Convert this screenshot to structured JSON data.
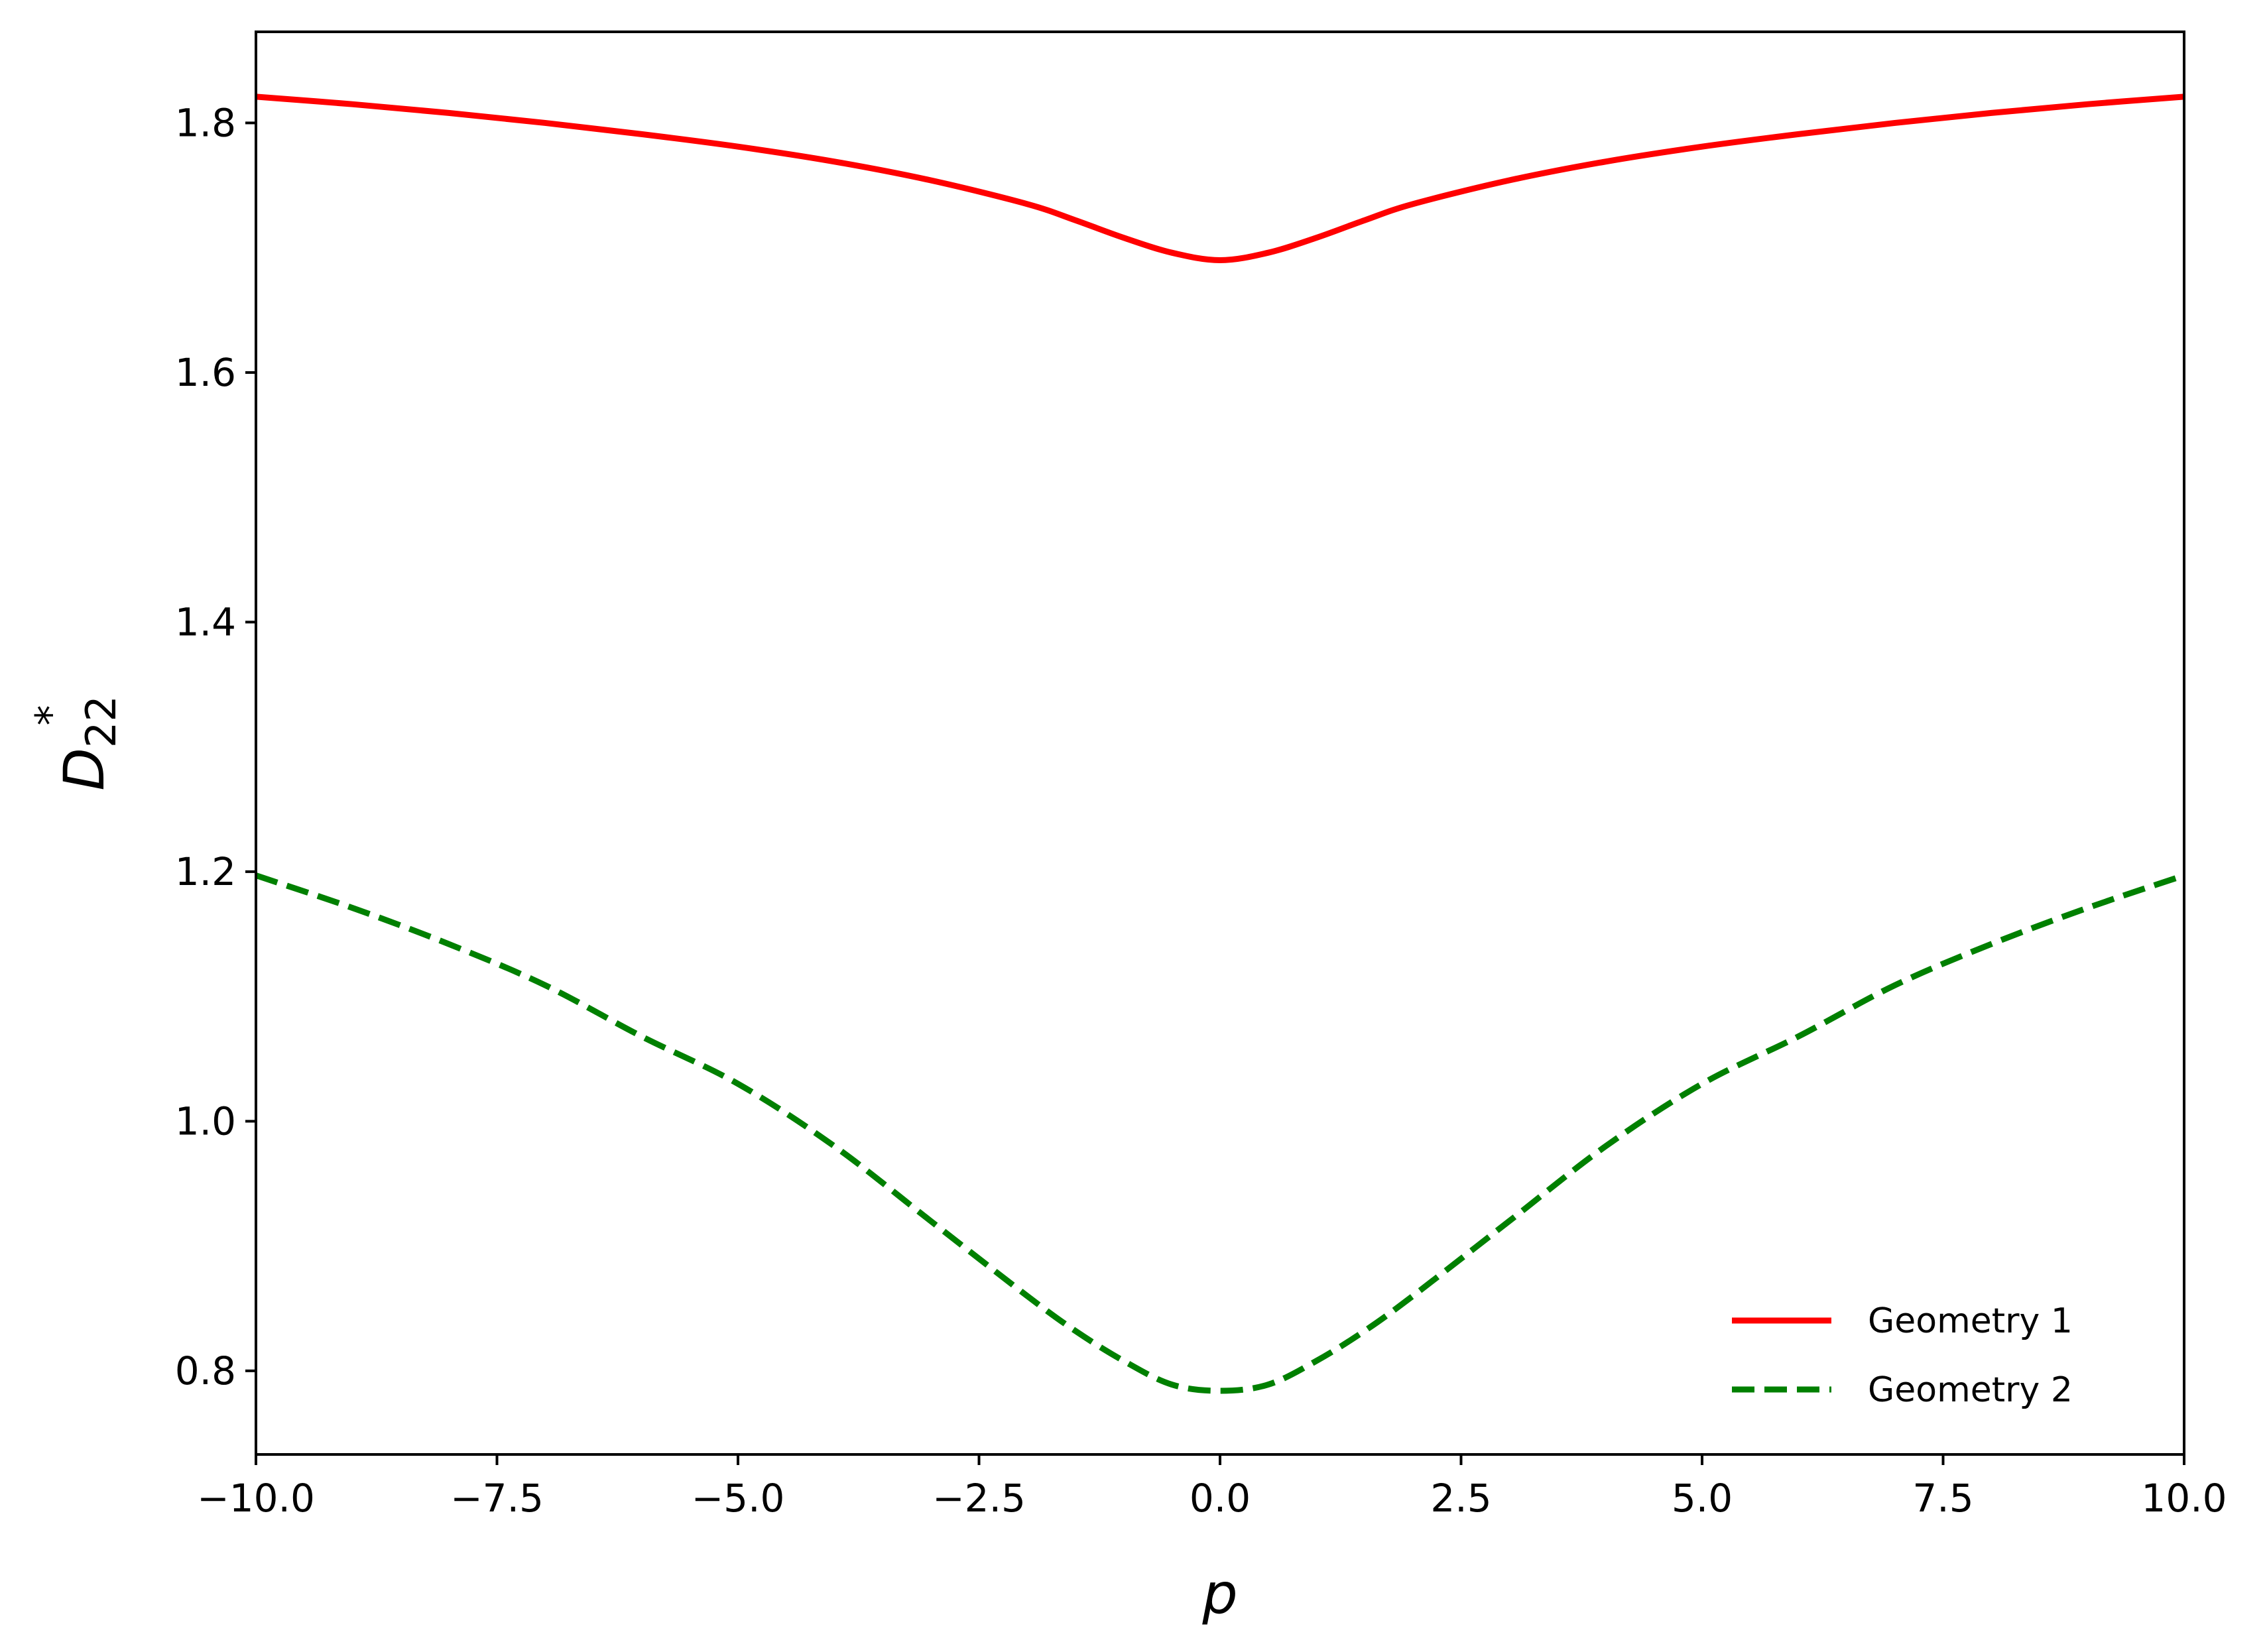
{
  "chart_data": {
    "type": "line",
    "xlabel": "p",
    "ylabel": {
      "base": "D",
      "superscript": "*",
      "subscript": "22"
    },
    "xlim": [
      -10.0,
      10.0
    ],
    "ylim": [
      0.733,
      1.873
    ],
    "x_ticks": [
      -10.0,
      -7.5,
      -5.0,
      -2.5,
      0.0,
      2.5,
      5.0,
      7.5,
      10.0
    ],
    "x_tick_labels": [
      "−10.0",
      "−7.5",
      "−5.0",
      "−2.5",
      "0.0",
      "2.5",
      "5.0",
      "7.5",
      "10.0"
    ],
    "y_ticks": [
      0.8,
      1.0,
      1.2,
      1.4,
      1.6,
      1.8
    ],
    "y_tick_labels": [
      "0.8",
      "1.0",
      "1.2",
      "1.4",
      "1.6",
      "1.8"
    ],
    "grid": false,
    "legend_position": "bottom-right",
    "x": [
      -10,
      -9,
      -8,
      -7,
      -6,
      -5,
      -4,
      -3,
      -2,
      -1.5,
      -1,
      -0.5,
      0,
      0.5,
      1,
      1.5,
      2,
      3,
      4,
      5,
      6,
      7,
      8,
      9,
      10
    ],
    "series": [
      {
        "name": "Geometry 1",
        "color": "#ff0000",
        "line_style": "solid",
        "values": [
          1.821,
          1.815,
          1.808,
          1.8,
          1.791,
          1.781,
          1.769,
          1.754,
          1.735,
          1.722,
          1.708,
          1.696,
          1.69,
          1.696,
          1.708,
          1.722,
          1.735,
          1.754,
          1.769,
          1.781,
          1.791,
          1.8,
          1.808,
          1.815,
          1.821
        ]
      },
      {
        "name": "Geometry 2",
        "color": "#008000",
        "line_style": "dashed",
        "values": [
          1.197,
          1.171,
          1.142,
          1.109,
          1.068,
          1.03,
          0.98,
          0.92,
          0.86,
          0.832,
          0.808,
          0.789,
          0.784,
          0.789,
          0.808,
          0.832,
          0.86,
          0.92,
          0.98,
          1.03,
          1.068,
          1.109,
          1.142,
          1.171,
          1.197
        ]
      }
    ]
  }
}
